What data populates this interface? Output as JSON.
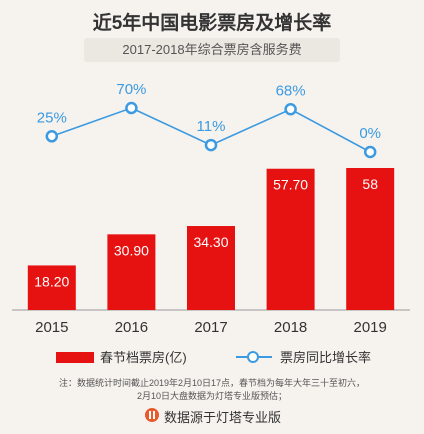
{
  "chart_data": {
    "type": "bar",
    "title": "近5年中国电影票房及增长率",
    "subtitle": "2017-2018年综合票房含服务费",
    "categories": [
      "2015",
      "2016",
      "2017",
      "2018",
      "2019"
    ],
    "series": [
      {
        "name": "春节档票房(亿)",
        "type": "bar",
        "values": [
          18.2,
          30.9,
          34.3,
          57.7,
          58
        ],
        "labels": [
          "18.20",
          "30.90",
          "34.30",
          "57.70",
          "58"
        ],
        "color": "#e61111"
      },
      {
        "name": "票房同比增长率",
        "type": "line",
        "values": [
          25,
          70,
          11,
          68,
          0
        ],
        "labels": [
          "25%",
          "70%",
          "11%",
          "68%",
          "0%"
        ],
        "color": "#3b9ae1"
      }
    ],
    "bar_ylim": [
      0,
      70
    ],
    "line_ylim": [
      0,
      90
    ],
    "grid": false,
    "legend_position": "bottom"
  },
  "notes": {
    "line1": "注：数据统计时间截止2019年2月10日17点，春节档为每年大年三十至初六，",
    "line2": "2月10日大盘数据为灯塔专业版预估；"
  },
  "source": "数据源于灯塔专业版",
  "colors": {
    "bar": "#e61111",
    "line": "#3b9ae1",
    "background": "#f6f3ee"
  }
}
